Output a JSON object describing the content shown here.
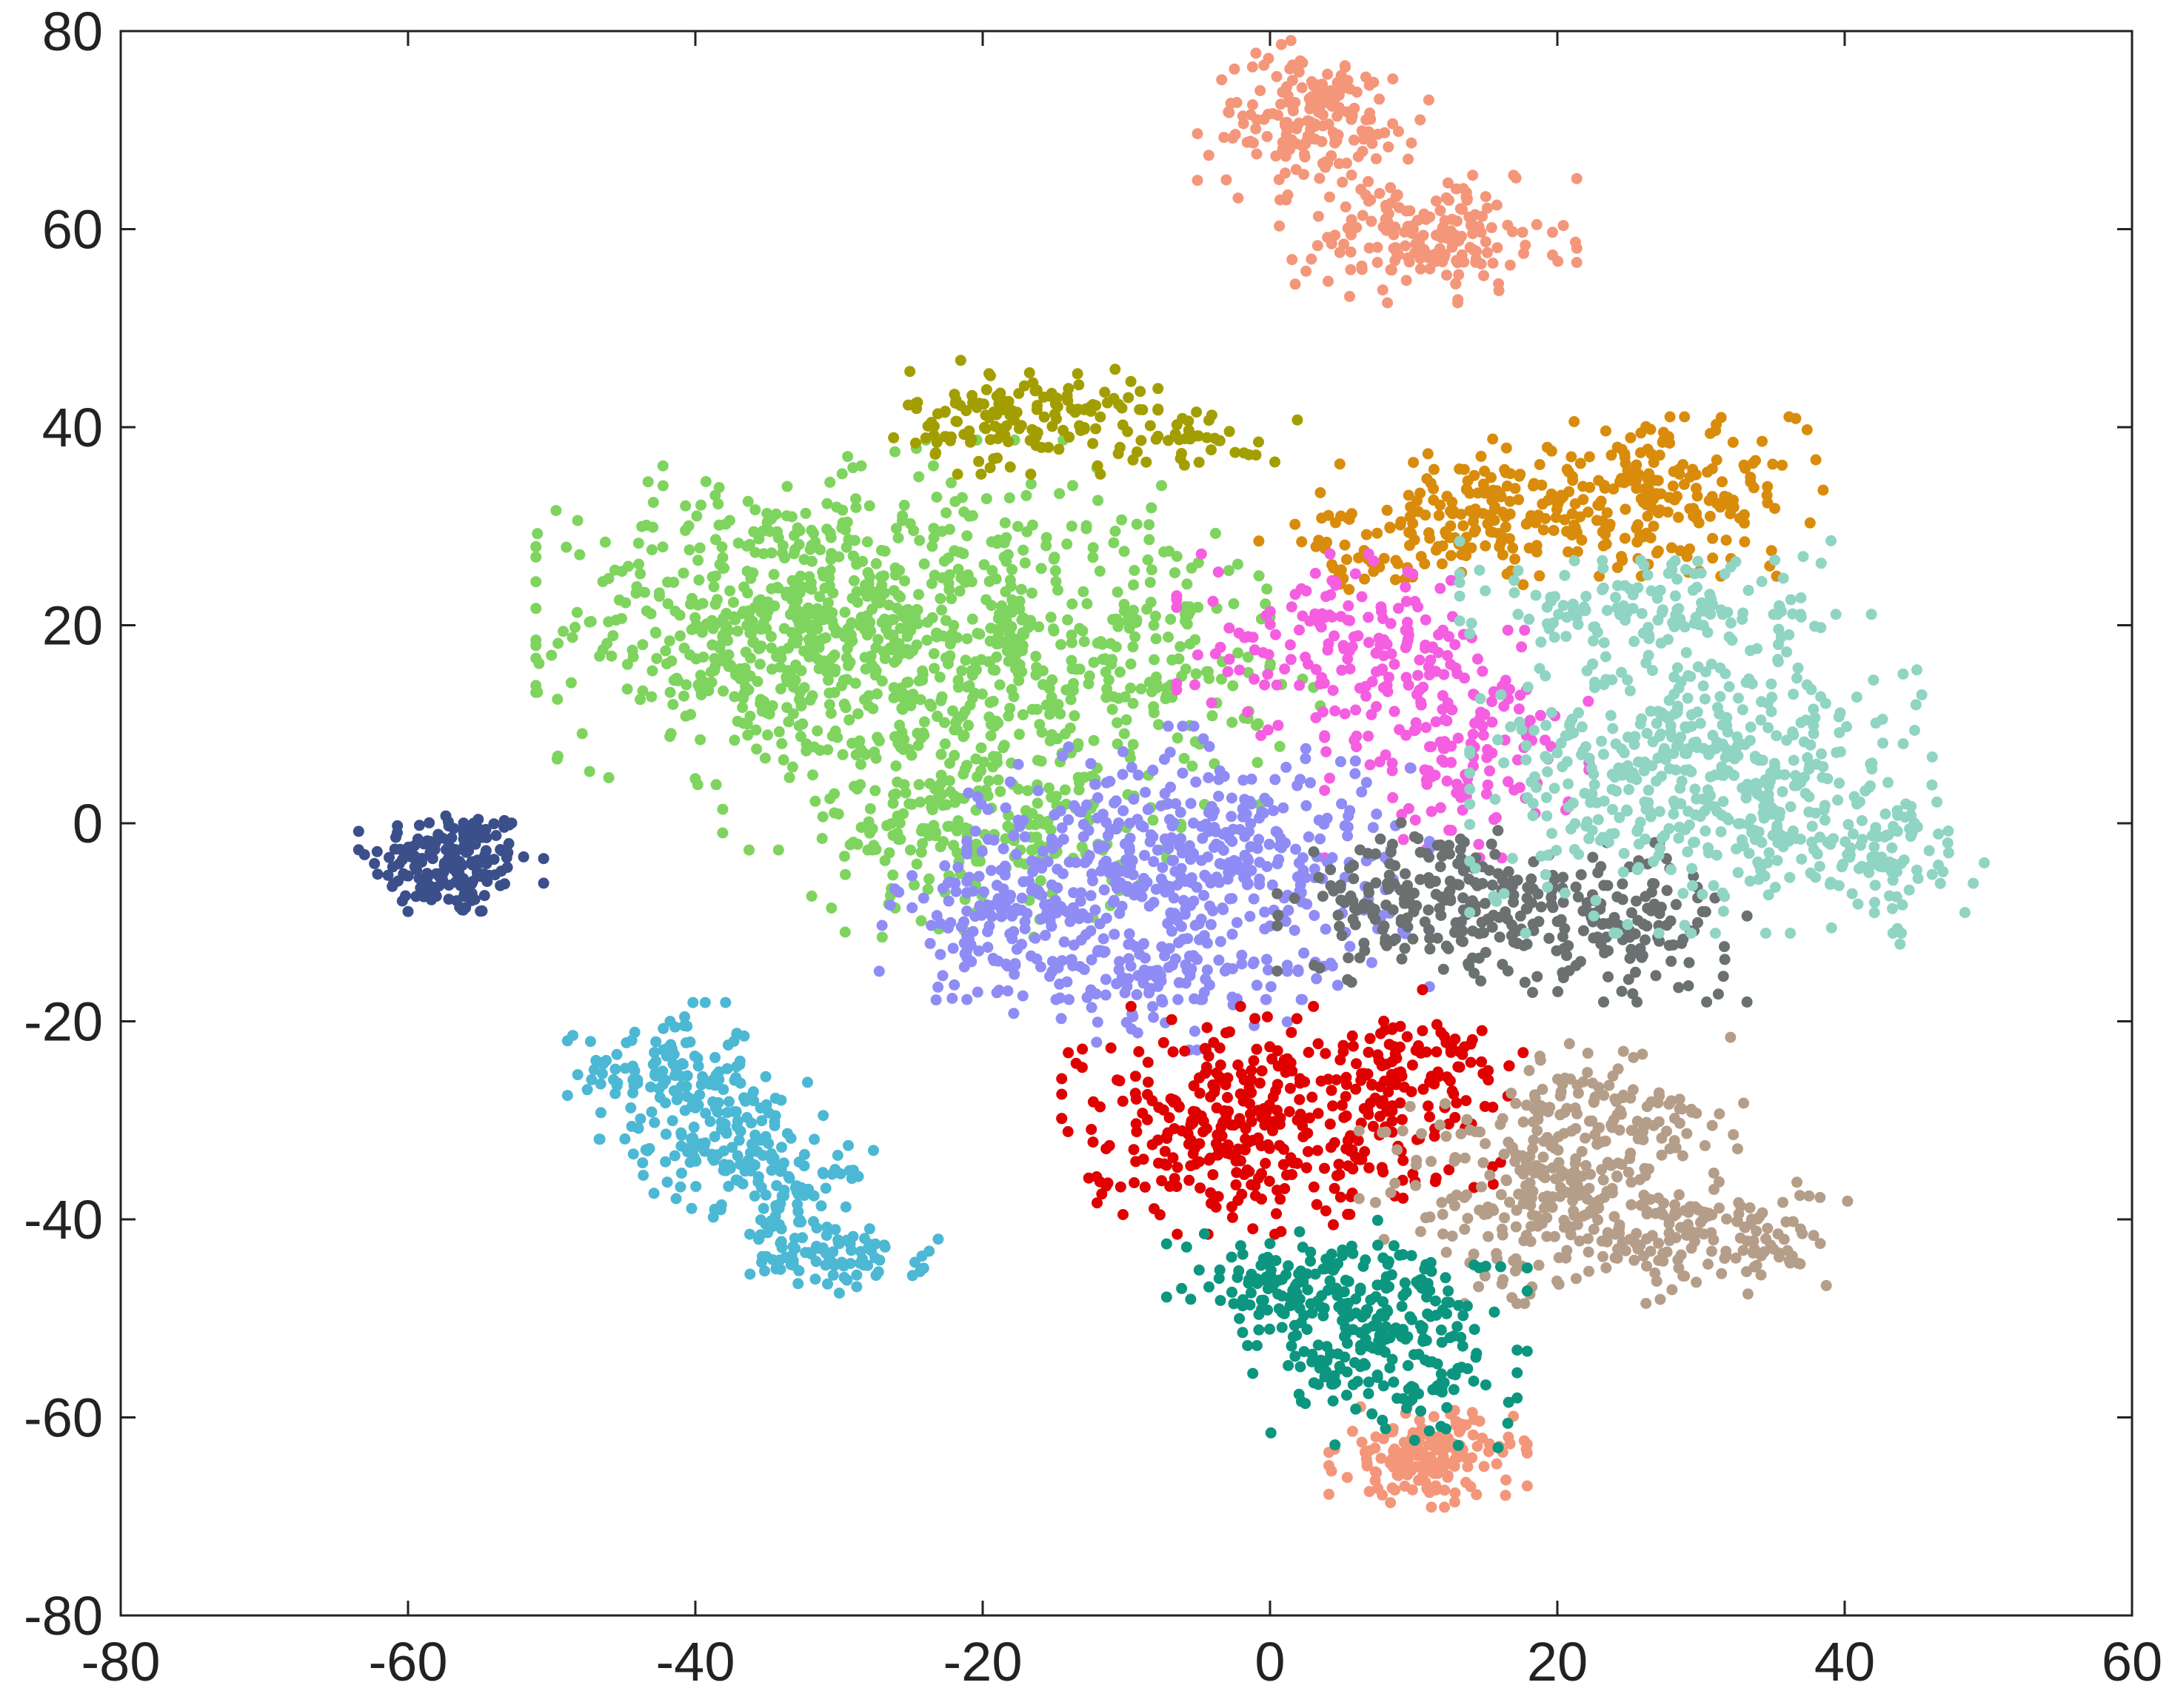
{
  "chart_data": {
    "type": "scatter",
    "title": "",
    "xlabel": "",
    "ylabel": "",
    "xlim": [
      -80,
      60
    ],
    "ylim": [
      -80,
      80
    ],
    "xticks": [
      -80,
      -60,
      -40,
      -20,
      0,
      20,
      40,
      60
    ],
    "yticks": [
      -80,
      -60,
      -40,
      -20,
      0,
      20,
      40,
      60,
      80
    ],
    "grid": false,
    "legend": "none",
    "series": [
      {
        "color": "#3b4f8a",
        "clusters": [
          {
            "cx": -57,
            "cy": -4,
            "sx": 2.8,
            "sy": 2.8,
            "n": 170
          }
        ]
      },
      {
        "color": "#4cb8d4",
        "clusters": [
          {
            "cx": -42,
            "cy": -25,
            "sx": 3,
            "sy": 3,
            "n": 110
          },
          {
            "cx": -38,
            "cy": -32,
            "sx": 3,
            "sy": 3,
            "n": 130
          },
          {
            "cx": -33,
            "cy": -38,
            "sx": 2.5,
            "sy": 2.5,
            "n": 70
          },
          {
            "cx": -30,
            "cy": -44,
            "sx": 3,
            "sy": 1.5,
            "n": 80
          }
        ]
      },
      {
        "color": "#7ed45e",
        "clusters": [
          {
            "cx": -35,
            "cy": 20,
            "sx": 7,
            "sy": 7,
            "n": 500
          },
          {
            "cx": -22,
            "cy": 18,
            "sx": 7,
            "sy": 9,
            "n": 450
          },
          {
            "cx": -20,
            "cy": 0,
            "sx": 6,
            "sy": 5,
            "n": 200
          },
          {
            "cx": -8,
            "cy": 18,
            "sx": 5,
            "sy": 7,
            "n": 150
          }
        ]
      },
      {
        "color": "#a39e00",
        "clusters": [
          {
            "cx": -17,
            "cy": 41,
            "sx": 4,
            "sy": 2.5,
            "n": 150
          },
          {
            "cx": -5,
            "cy": 39,
            "sx": 3,
            "sy": 1.5,
            "n": 40
          }
        ]
      },
      {
        "color": "#f4967a",
        "clusters": [
          {
            "cx": 3,
            "cy": 71,
            "sx": 3.5,
            "sy": 3.5,
            "n": 180
          },
          {
            "cx": 11,
            "cy": 59,
            "sx": 4.5,
            "sy": 2.8,
            "n": 180
          },
          {
            "cx": 11,
            "cy": -64,
            "sx": 3,
            "sy": 2.2,
            "n": 170
          }
        ]
      },
      {
        "color": "#d98c0b",
        "clusters": [
          {
            "cx": 15,
            "cy": 31,
            "sx": 5,
            "sy": 3,
            "n": 150
          },
          {
            "cx": 27,
            "cy": 33,
            "sx": 5,
            "sy": 3.5,
            "n": 200
          },
          {
            "cx": 6,
            "cy": 27,
            "sx": 3,
            "sy": 2,
            "n": 40
          }
        ]
      },
      {
        "color": "#f55ee0",
        "clusters": [
          {
            "cx": 5,
            "cy": 18,
            "sx": 5,
            "sy": 4,
            "n": 150
          },
          {
            "cx": 13,
            "cy": 8,
            "sx": 4,
            "sy": 5,
            "n": 150
          }
        ]
      },
      {
        "color": "#8f8cf5",
        "clusters": [
          {
            "cx": -5,
            "cy": -4,
            "sx": 7,
            "sy": 6,
            "n": 450
          },
          {
            "cx": -18,
            "cy": -10,
            "sx": 4,
            "sy": 4,
            "n": 160
          },
          {
            "cx": -8,
            "cy": -16,
            "sx": 4,
            "sy": 3,
            "n": 90
          }
        ]
      },
      {
        "color": "#6b7070",
        "clusters": [
          {
            "cx": 12,
            "cy": -8,
            "sx": 5,
            "sy": 3.5,
            "n": 220
          },
          {
            "cx": 24,
            "cy": -10,
            "sx": 4,
            "sy": 3.5,
            "n": 140
          }
        ]
      },
      {
        "color": "#90d4c3",
        "clusters": [
          {
            "cx": 30,
            "cy": 5,
            "sx": 7,
            "sy": 7,
            "n": 500
          },
          {
            "cx": 27,
            "cy": 22,
            "sx": 6,
            "sy": 3,
            "n": 140
          },
          {
            "cx": 42,
            "cy": -3,
            "sx": 3.5,
            "sy": 4,
            "n": 90
          }
        ]
      },
      {
        "color": "#e00000",
        "clusters": [
          {
            "cx": -3,
            "cy": -30,
            "sx": 5,
            "sy": 5,
            "n": 300
          },
          {
            "cx": 8,
            "cy": -28,
            "sx": 3.5,
            "sy": 5,
            "n": 120
          },
          {
            "cx": 12,
            "cy": -24,
            "sx": 3,
            "sy": 2,
            "n": 40
          }
        ]
      },
      {
        "color": "#b59e89",
        "clusters": [
          {
            "cx": 20,
            "cy": -37,
            "sx": 6,
            "sy": 5,
            "n": 300
          },
          {
            "cx": 31,
            "cy": -42,
            "sx": 4,
            "sy": 2.5,
            "n": 120
          },
          {
            "cx": 24,
            "cy": -28,
            "sx": 3.5,
            "sy": 3,
            "n": 70
          }
        ]
      },
      {
        "color": "#0c9680",
        "clusters": [
          {
            "cx": 2,
            "cy": -47,
            "sx": 4,
            "sy": 2.5,
            "n": 140
          },
          {
            "cx": 8,
            "cy": -55,
            "sx": 4,
            "sy": 3.5,
            "n": 150
          },
          {
            "cx": 11,
            "cy": -47,
            "sx": 3,
            "sy": 3,
            "n": 60
          }
        ]
      }
    ]
  }
}
